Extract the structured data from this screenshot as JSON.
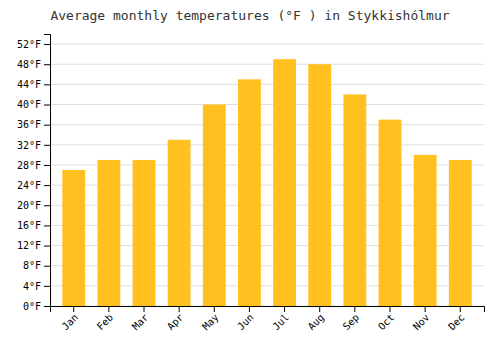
{
  "chart_data": {
    "type": "bar",
    "title": "Average monthly temperatures (°F ) in Stykkishólmur",
    "categories": [
      "Jan",
      "Feb",
      "Mar",
      "Apr",
      "May",
      "Jun",
      "Jul",
      "Aug",
      "Sep",
      "Oct",
      "Nov",
      "Dec"
    ],
    "values": [
      27,
      29,
      29,
      33,
      40,
      45,
      49,
      48,
      42,
      37,
      30,
      29
    ],
    "color": "#FFC020",
    "ylim": [
      0,
      54
    ],
    "yticks": [
      {
        "value": 0,
        "label": "0°F"
      },
      {
        "value": 4,
        "label": "4°F"
      },
      {
        "value": 8,
        "label": "8°F"
      },
      {
        "value": 12,
        "label": "12°F"
      },
      {
        "value": 16,
        "label": "16°F"
      },
      {
        "value": 20,
        "label": "20°F"
      },
      {
        "value": 24,
        "label": "24°F"
      },
      {
        "value": 28,
        "label": "28°F"
      },
      {
        "value": 32,
        "label": "32°F"
      },
      {
        "value": 36,
        "label": "36°F"
      },
      {
        "value": 40,
        "label": "40°F"
      },
      {
        "value": 44,
        "label": "44°F"
      },
      {
        "value": 48,
        "label": "48°F"
      },
      {
        "value": 52,
        "label": "52°F"
      }
    ],
    "grid": true
  }
}
